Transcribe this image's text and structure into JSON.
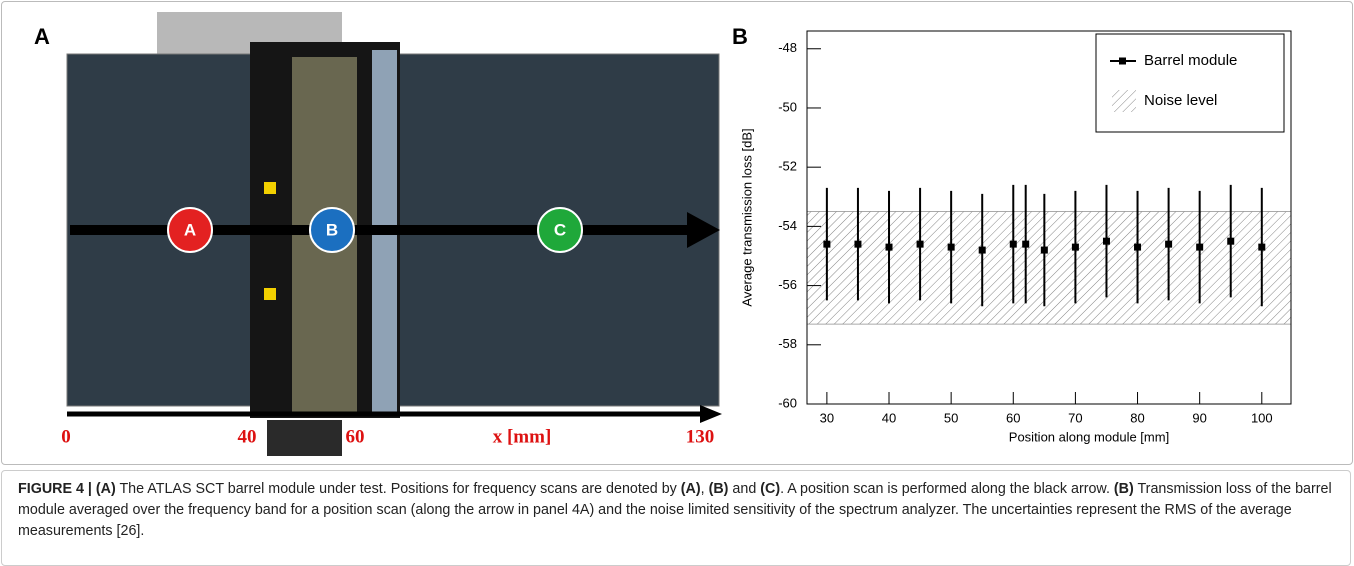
{
  "panel_a": {
    "label": "A",
    "markers": [
      "A",
      "B",
      "C"
    ],
    "scale_labels": [
      "0",
      "40",
      "60",
      "x [mm]",
      "130"
    ]
  },
  "chart_data": {
    "type": "errorbar",
    "panel_label": "B",
    "x_label": "Position along module [mm]",
    "y_label": "Average transmission loss [dB]",
    "xlim": [
      26.8,
      104.7
    ],
    "xticks": [
      30,
      40,
      50,
      60,
      70,
      80,
      90,
      100
    ],
    "ylim": [
      -60,
      -47.4
    ],
    "yticks": [
      -60,
      -58,
      -56,
      -54,
      -52,
      -50,
      -48
    ],
    "legend": "upper right",
    "series": [
      {
        "name": "Barrel module",
        "color": "#000000",
        "x": [
          30,
          35,
          40,
          45,
          50,
          55,
          60,
          62,
          65,
          70,
          75,
          80,
          85,
          90,
          95,
          100
        ],
        "values": [
          -54.6,
          -54.6,
          -54.7,
          -54.6,
          -54.7,
          -54.8,
          -54.6,
          -54.6,
          -54.8,
          -54.7,
          -54.5,
          -54.7,
          -54.6,
          -54.7,
          -54.5,
          -54.7
        ],
        "errors": [
          1.9,
          1.9,
          1.9,
          1.9,
          1.9,
          1.9,
          2.0,
          2.0,
          1.9,
          1.9,
          1.9,
          1.9,
          1.9,
          1.9,
          1.9,
          2.0
        ]
      }
    ],
    "noise": {
      "name": "Noise level",
      "low": -57.3,
      "high": -53.5,
      "color": "#555555"
    }
  },
  "caption": [
    {
      "text": "FIGURE 4 | (A)",
      "bold": true
    },
    {
      "text": " The ATLAS SCT barrel module under test. Positions for frequency scans are denoted by ",
      "bold": false
    },
    {
      "text": "(A)",
      "bold": true
    },
    {
      "text": ", ",
      "bold": false
    },
    {
      "text": "(B)",
      "bold": true
    },
    {
      "text": " and ",
      "bold": false
    },
    {
      "text": "(C)",
      "bold": true
    },
    {
      "text": ". A position scan is performed along the black arrow. ",
      "bold": false
    },
    {
      "text": "(B)",
      "bold": true
    },
    {
      "text": " Transmission loss of the barrel module averaged over the frequency band for a position scan (along the arrow in panel 4A) and the noise limited sensitivity of the spectrum analyzer. The uncertainties represent the RMS of the average measurements ",
      "bold": false
    },
    {
      "text": "[26]",
      "bold": false
    },
    {
      "text": ".",
      "bold": false
    }
  ]
}
